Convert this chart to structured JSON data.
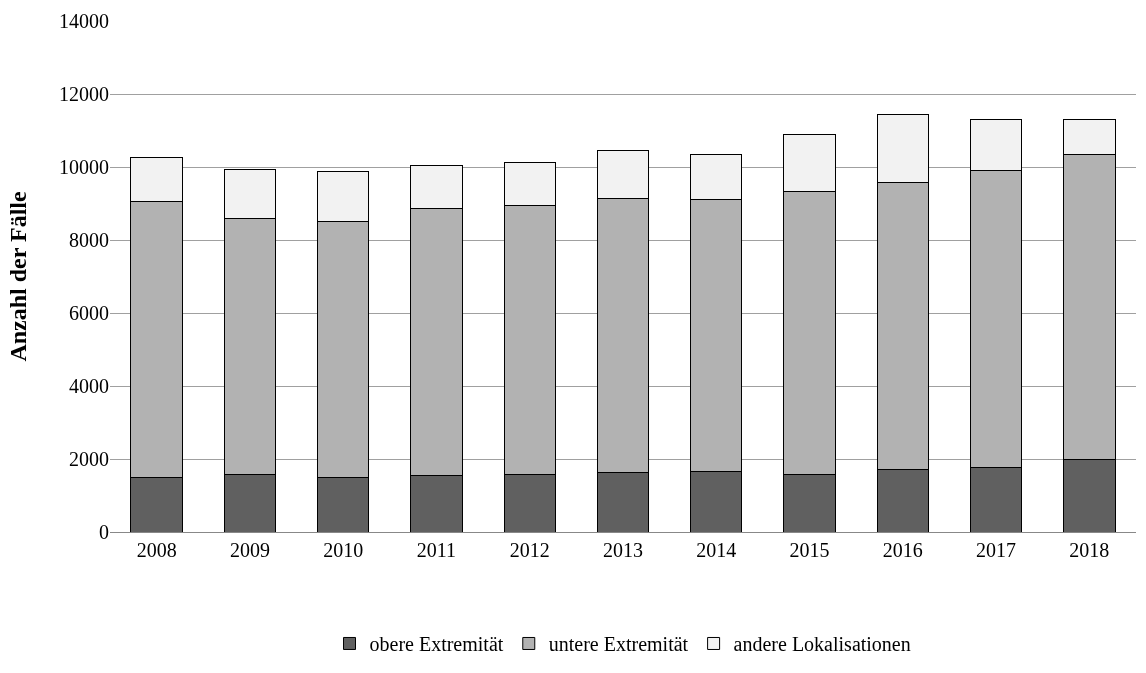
{
  "chart_data": {
    "type": "bar",
    "stacked": true,
    "ylabel": "Anzahl der Fälle",
    "categories": [
      "2008",
      "2009",
      "2010",
      "2011",
      "2012",
      "2013",
      "2014",
      "2015",
      "2016",
      "2017",
      "2018"
    ],
    "series": [
      {
        "name": "obere Extremität",
        "color": "#606060",
        "values": [
          1500,
          1580,
          1500,
          1550,
          1580,
          1620,
          1650,
          1580,
          1720,
          1770,
          2000
        ]
      },
      {
        "name": "untere Extremität",
        "color": "#b2b2b2",
        "values": [
          7550,
          7020,
          7000,
          7300,
          7370,
          7530,
          7470,
          7750,
          7860,
          8130,
          8350
        ]
      },
      {
        "name": "andere Lokalisationen",
        "color": "#f2f2f2",
        "values": [
          1200,
          1330,
          1370,
          1200,
          1180,
          1300,
          1210,
          1550,
          1870,
          1400,
          950
        ]
      }
    ],
    "ylim": [
      0,
      14000
    ],
    "yticks": [
      0,
      2000,
      4000,
      6000,
      8000,
      10000,
      12000,
      14000
    ],
    "grid": "y",
    "legend": "bottom"
  }
}
